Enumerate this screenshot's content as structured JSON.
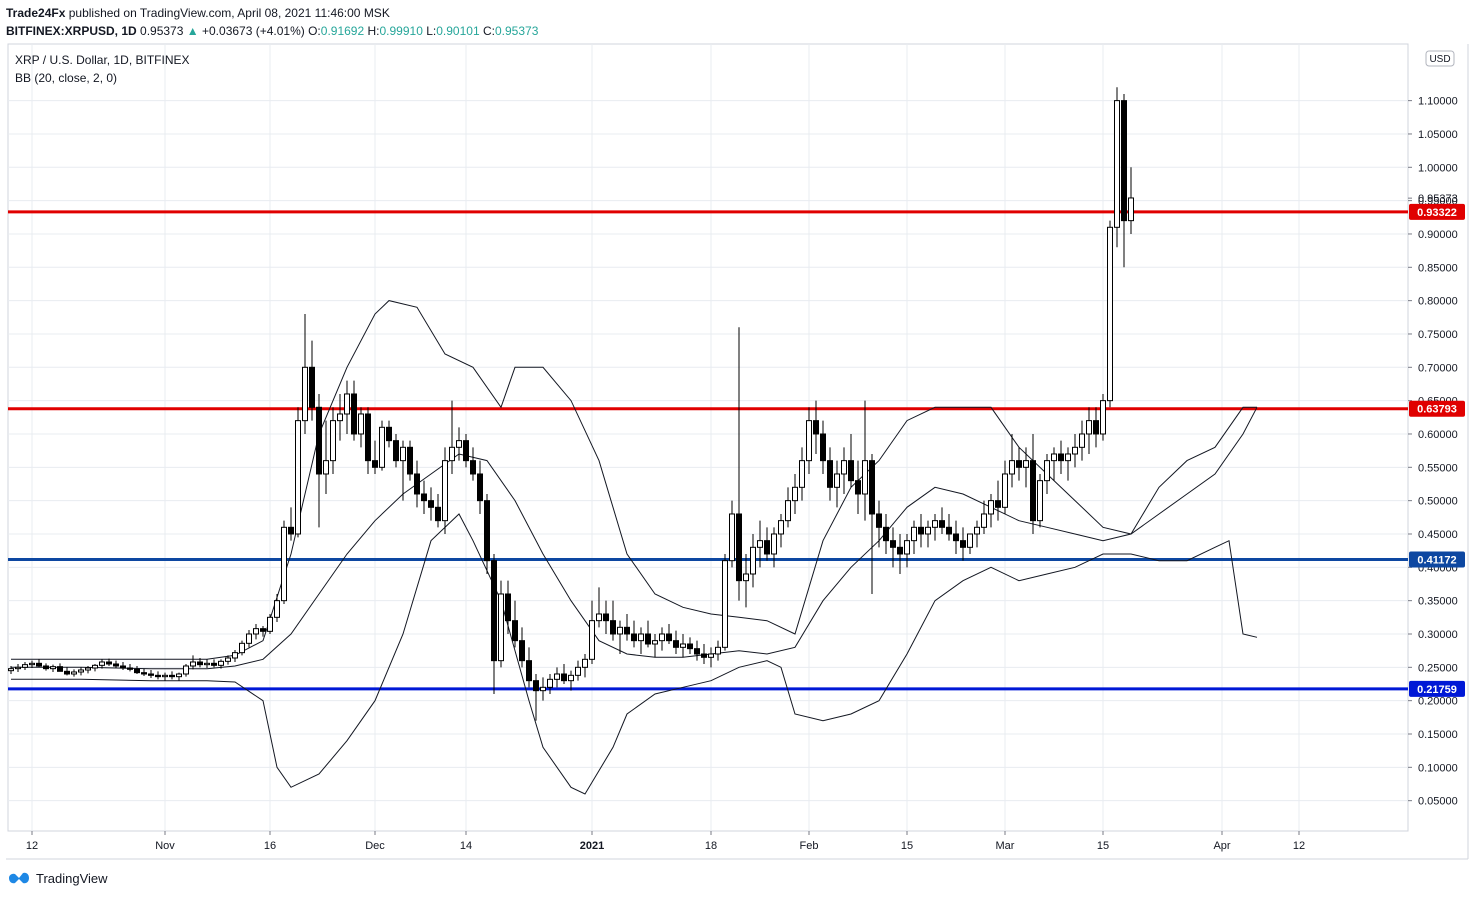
{
  "header": {
    "publisher": "Trade24Fx",
    "published_text": "published on TradingView.com, April 08, 2021 11:46:00 MSK",
    "symbol": "BITFINEX:XRPUSD, 1D",
    "last": "0.95373",
    "change": "+0.03673 (+4.01%)",
    "o_label": "O:",
    "o_value": "0.91692",
    "h_label": "H:",
    "h_value": "0.99910",
    "l_label": "L:",
    "l_value": "0.90101",
    "c_label": "C:",
    "c_value": "0.95373",
    "legend_title": "XRP / U.S. Dollar, 1D, BITFINEX",
    "legend_indicator": "BB (20, close, 2, 0)"
  },
  "currency_badge": "USD",
  "footer": {
    "brand": "TradingView"
  },
  "colors": {
    "resistance": "#e00000",
    "support_1": "#0d47a1",
    "support_2": "#0018d6",
    "candle": "#000000",
    "band": "#131722",
    "grid": "#e8ecf1"
  },
  "chart_data": {
    "type": "candlestick",
    "title": "XRP / U.S. Dollar, 1D, BITFINEX",
    "ylim": [
      0,
      1.15
    ],
    "y_ticks": [
      "0.05000",
      "0.10000",
      "0.15000",
      "0.20000",
      "0.25000",
      "0.30000",
      "0.35000",
      "0.40000",
      "0.45000",
      "0.50000",
      "0.55000",
      "0.60000",
      "0.65000",
      "0.70000",
      "0.75000",
      "0.80000",
      "0.85000",
      "0.90000",
      "0.95000",
      "1.00000",
      "1.05000",
      "1.10000"
    ],
    "x_ticks": [
      {
        "label": "12",
        "day": 3
      },
      {
        "label": "Nov",
        "day": 22
      },
      {
        "label": "16",
        "day": 37
      },
      {
        "label": "Dec",
        "day": 52
      },
      {
        "label": "14",
        "day": 65
      },
      {
        "label": "2021",
        "day": 83
      },
      {
        "label": "18",
        "day": 100
      },
      {
        "label": "Feb",
        "day": 114
      },
      {
        "label": "15",
        "day": 128
      },
      {
        "label": "Mar",
        "day": 142
      },
      {
        "label": "15",
        "day": 156
      },
      {
        "label": "Apr",
        "day": 173
      },
      {
        "label": "12",
        "day": 184
      }
    ],
    "horizontal_levels": [
      {
        "price": 0.93322,
        "label": "0.93322",
        "color": "#e00000"
      },
      {
        "price": 0.63793,
        "label": "0.63793",
        "color": "#e00000"
      },
      {
        "price": 0.41172,
        "label": "0.41172",
        "color": "#0d47a1"
      },
      {
        "price": 0.21759,
        "label": "0.21759",
        "color": "#0018d6"
      }
    ],
    "last_price_label": "0.95373",
    "candles": [
      [
        0.245,
        0.252,
        0.24,
        0.248
      ],
      [
        0.248,
        0.255,
        0.243,
        0.25
      ],
      [
        0.25,
        0.258,
        0.246,
        0.254
      ],
      [
        0.254,
        0.26,
        0.249,
        0.256
      ],
      [
        0.256,
        0.262,
        0.25,
        0.252
      ],
      [
        0.252,
        0.256,
        0.245,
        0.248
      ],
      [
        0.248,
        0.254,
        0.243,
        0.251
      ],
      [
        0.251,
        0.256,
        0.246,
        0.244
      ],
      [
        0.244,
        0.25,
        0.238,
        0.24
      ],
      [
        0.24,
        0.247,
        0.236,
        0.243
      ],
      [
        0.243,
        0.25,
        0.238,
        0.246
      ],
      [
        0.246,
        0.252,
        0.241,
        0.249
      ],
      [
        0.249,
        0.255,
        0.244,
        0.253
      ],
      [
        0.253,
        0.262,
        0.248,
        0.258
      ],
      [
        0.258,
        0.263,
        0.252,
        0.255
      ],
      [
        0.255,
        0.26,
        0.249,
        0.252
      ],
      [
        0.252,
        0.258,
        0.246,
        0.249
      ],
      [
        0.249,
        0.255,
        0.244,
        0.247
      ],
      [
        0.247,
        0.252,
        0.24,
        0.242
      ],
      [
        0.242,
        0.248,
        0.237,
        0.24
      ],
      [
        0.24,
        0.246,
        0.234,
        0.238
      ],
      [
        0.238,
        0.244,
        0.232,
        0.236
      ],
      [
        0.236,
        0.242,
        0.23,
        0.238
      ],
      [
        0.238,
        0.244,
        0.232,
        0.236
      ],
      [
        0.236,
        0.242,
        0.23,
        0.24
      ],
      [
        0.24,
        0.255,
        0.236,
        0.252
      ],
      [
        0.252,
        0.268,
        0.247,
        0.258
      ],
      [
        0.258,
        0.264,
        0.25,
        0.254
      ],
      [
        0.254,
        0.262,
        0.249,
        0.256
      ],
      [
        0.256,
        0.262,
        0.25,
        0.253
      ],
      [
        0.253,
        0.262,
        0.248,
        0.259
      ],
      [
        0.259,
        0.268,
        0.254,
        0.264
      ],
      [
        0.264,
        0.276,
        0.258,
        0.272
      ],
      [
        0.272,
        0.29,
        0.268,
        0.286
      ],
      [
        0.286,
        0.306,
        0.28,
        0.3
      ],
      [
        0.3,
        0.315,
        0.292,
        0.308
      ],
      [
        0.308,
        0.312,
        0.296,
        0.304
      ],
      [
        0.304,
        0.33,
        0.3,
        0.325
      ],
      [
        0.325,
        0.36,
        0.318,
        0.35
      ],
      [
        0.35,
        0.47,
        0.345,
        0.46
      ],
      [
        0.46,
        0.49,
        0.44,
        0.45
      ],
      [
        0.45,
        0.64,
        0.445,
        0.62
      ],
      [
        0.62,
        0.78,
        0.6,
        0.7
      ],
      [
        0.7,
        0.74,
        0.62,
        0.64
      ],
      [
        0.64,
        0.66,
        0.46,
        0.54
      ],
      [
        0.54,
        0.62,
        0.51,
        0.56
      ],
      [
        0.56,
        0.64,
        0.54,
        0.62
      ],
      [
        0.62,
        0.66,
        0.59,
        0.63
      ],
      [
        0.63,
        0.68,
        0.6,
        0.66
      ],
      [
        0.66,
        0.68,
        0.59,
        0.6
      ],
      [
        0.6,
        0.64,
        0.58,
        0.63
      ],
      [
        0.63,
        0.64,
        0.54,
        0.56
      ],
      [
        0.56,
        0.59,
        0.54,
        0.55
      ],
      [
        0.55,
        0.62,
        0.545,
        0.61
      ],
      [
        0.61,
        0.62,
        0.58,
        0.59
      ],
      [
        0.59,
        0.6,
        0.55,
        0.56
      ],
      [
        0.56,
        0.59,
        0.5,
        0.58
      ],
      [
        0.58,
        0.59,
        0.53,
        0.54
      ],
      [
        0.54,
        0.56,
        0.49,
        0.51
      ],
      [
        0.51,
        0.53,
        0.48,
        0.5
      ],
      [
        0.5,
        0.52,
        0.47,
        0.49
      ],
      [
        0.49,
        0.51,
        0.46,
        0.47
      ],
      [
        0.47,
        0.58,
        0.45,
        0.56
      ],
      [
        0.56,
        0.65,
        0.54,
        0.58
      ],
      [
        0.58,
        0.61,
        0.56,
        0.59
      ],
      [
        0.59,
        0.6,
        0.55,
        0.56
      ],
      [
        0.56,
        0.58,
        0.53,
        0.54
      ],
      [
        0.54,
        0.56,
        0.48,
        0.5
      ],
      [
        0.5,
        0.51,
        0.39,
        0.41
      ],
      [
        0.41,
        0.42,
        0.21,
        0.26
      ],
      [
        0.26,
        0.38,
        0.25,
        0.36
      ],
      [
        0.36,
        0.38,
        0.3,
        0.32
      ],
      [
        0.32,
        0.35,
        0.28,
        0.29
      ],
      [
        0.29,
        0.31,
        0.25,
        0.26
      ],
      [
        0.26,
        0.28,
        0.22,
        0.23
      ],
      [
        0.23,
        0.24,
        0.17,
        0.215
      ],
      [
        0.215,
        0.235,
        0.2,
        0.22
      ],
      [
        0.22,
        0.24,
        0.21,
        0.232
      ],
      [
        0.232,
        0.25,
        0.22,
        0.24
      ],
      [
        0.24,
        0.255,
        0.225,
        0.23
      ],
      [
        0.23,
        0.245,
        0.215,
        0.238
      ],
      [
        0.238,
        0.26,
        0.23,
        0.25
      ],
      [
        0.25,
        0.27,
        0.235,
        0.262
      ],
      [
        0.262,
        0.35,
        0.255,
        0.32
      ],
      [
        0.32,
        0.37,
        0.31,
        0.33
      ],
      [
        0.33,
        0.35,
        0.3,
        0.32
      ],
      [
        0.32,
        0.35,
        0.29,
        0.3
      ],
      [
        0.3,
        0.32,
        0.27,
        0.31
      ],
      [
        0.31,
        0.33,
        0.29,
        0.3
      ],
      [
        0.3,
        0.32,
        0.28,
        0.29
      ],
      [
        0.29,
        0.31,
        0.27,
        0.3
      ],
      [
        0.3,
        0.32,
        0.28,
        0.285
      ],
      [
        0.285,
        0.3,
        0.265,
        0.29
      ],
      [
        0.29,
        0.31,
        0.275,
        0.3
      ],
      [
        0.3,
        0.315,
        0.285,
        0.29
      ],
      [
        0.29,
        0.305,
        0.27,
        0.28
      ],
      [
        0.28,
        0.3,
        0.265,
        0.285
      ],
      [
        0.285,
        0.295,
        0.27,
        0.278
      ],
      [
        0.278,
        0.29,
        0.26,
        0.27
      ],
      [
        0.27,
        0.285,
        0.255,
        0.265
      ],
      [
        0.265,
        0.28,
        0.25,
        0.27
      ],
      [
        0.27,
        0.29,
        0.26,
        0.28
      ],
      [
        0.28,
        0.42,
        0.275,
        0.41
      ],
      [
        0.41,
        0.5,
        0.4,
        0.48
      ],
      [
        0.48,
        0.76,
        0.35,
        0.38
      ],
      [
        0.38,
        0.42,
        0.34,
        0.39
      ],
      [
        0.39,
        0.45,
        0.37,
        0.43
      ],
      [
        0.43,
        0.47,
        0.4,
        0.44
      ],
      [
        0.44,
        0.46,
        0.41,
        0.42
      ],
      [
        0.42,
        0.46,
        0.4,
        0.45
      ],
      [
        0.45,
        0.48,
        0.43,
        0.47
      ],
      [
        0.47,
        0.52,
        0.46,
        0.5
      ],
      [
        0.5,
        0.54,
        0.48,
        0.52
      ],
      [
        0.52,
        0.58,
        0.5,
        0.56
      ],
      [
        0.56,
        0.64,
        0.54,
        0.62
      ],
      [
        0.62,
        0.65,
        0.57,
        0.6
      ],
      [
        0.6,
        0.62,
        0.54,
        0.56
      ],
      [
        0.56,
        0.58,
        0.5,
        0.52
      ],
      [
        0.52,
        0.56,
        0.49,
        0.54
      ],
      [
        0.54,
        0.58,
        0.51,
        0.56
      ],
      [
        0.56,
        0.6,
        0.52,
        0.53
      ],
      [
        0.53,
        0.56,
        0.48,
        0.51
      ],
      [
        0.51,
        0.65,
        0.47,
        0.56
      ],
      [
        0.56,
        0.57,
        0.36,
        0.48
      ],
      [
        0.48,
        0.5,
        0.43,
        0.46
      ],
      [
        0.46,
        0.48,
        0.42,
        0.44
      ],
      [
        0.44,
        0.46,
        0.4,
        0.43
      ],
      [
        0.43,
        0.45,
        0.39,
        0.42
      ],
      [
        0.42,
        0.45,
        0.4,
        0.44
      ],
      [
        0.44,
        0.47,
        0.42,
        0.46
      ],
      [
        0.46,
        0.48,
        0.43,
        0.45
      ],
      [
        0.45,
        0.47,
        0.43,
        0.46
      ],
      [
        0.46,
        0.48,
        0.44,
        0.47
      ],
      [
        0.47,
        0.49,
        0.45,
        0.46
      ],
      [
        0.46,
        0.48,
        0.44,
        0.45
      ],
      [
        0.45,
        0.47,
        0.42,
        0.44
      ],
      [
        0.44,
        0.46,
        0.41,
        0.43
      ],
      [
        0.43,
        0.45,
        0.42,
        0.45
      ],
      [
        0.45,
        0.47,
        0.43,
        0.46
      ],
      [
        0.46,
        0.5,
        0.45,
        0.48
      ],
      [
        0.48,
        0.51,
        0.46,
        0.5
      ],
      [
        0.5,
        0.53,
        0.47,
        0.49
      ],
      [
        0.49,
        0.56,
        0.48,
        0.54
      ],
      [
        0.54,
        0.6,
        0.52,
        0.56
      ],
      [
        0.56,
        0.58,
        0.53,
        0.55
      ],
      [
        0.55,
        0.58,
        0.52,
        0.56
      ],
      [
        0.56,
        0.6,
        0.45,
        0.47
      ],
      [
        0.47,
        0.54,
        0.46,
        0.53
      ],
      [
        0.53,
        0.57,
        0.51,
        0.56
      ],
      [
        0.56,
        0.58,
        0.53,
        0.57
      ],
      [
        0.57,
        0.59,
        0.54,
        0.56
      ],
      [
        0.56,
        0.58,
        0.53,
        0.57
      ],
      [
        0.57,
        0.6,
        0.55,
        0.58
      ],
      [
        0.58,
        0.62,
        0.56,
        0.6
      ],
      [
        0.6,
        0.64,
        0.57,
        0.62
      ],
      [
        0.62,
        0.64,
        0.58,
        0.6
      ],
      [
        0.6,
        0.66,
        0.59,
        0.65
      ],
      [
        0.65,
        0.92,
        0.64,
        0.91
      ],
      [
        0.91,
        1.12,
        0.88,
        1.1
      ],
      [
        1.1,
        1.11,
        0.85,
        0.92
      ],
      [
        0.92,
        1.0,
        0.9,
        0.954
      ]
    ],
    "bollinger_upper": [
      [
        0,
        0.262
      ],
      [
        10,
        0.262
      ],
      [
        20,
        0.262
      ],
      [
        28,
        0.262
      ],
      [
        32,
        0.268
      ],
      [
        36,
        0.29
      ],
      [
        40,
        0.42
      ],
      [
        44,
        0.6
      ],
      [
        48,
        0.7
      ],
      [
        52,
        0.78
      ],
      [
        54,
        0.8
      ],
      [
        58,
        0.79
      ],
      [
        62,
        0.72
      ],
      [
        66,
        0.7
      ],
      [
        70,
        0.64
      ],
      [
        72,
        0.7
      ],
      [
        76,
        0.7
      ],
      [
        80,
        0.65
      ],
      [
        84,
        0.56
      ],
      [
        88,
        0.42
      ],
      [
        92,
        0.36
      ],
      [
        96,
        0.34
      ],
      [
        100,
        0.33
      ],
      [
        104,
        0.325
      ],
      [
        108,
        0.32
      ],
      [
        112,
        0.3
      ],
      [
        116,
        0.44
      ],
      [
        120,
        0.52
      ],
      [
        124,
        0.56
      ],
      [
        128,
        0.62
      ],
      [
        132,
        0.64
      ],
      [
        136,
        0.64
      ],
      [
        140,
        0.64
      ],
      [
        144,
        0.58
      ],
      [
        148,
        0.54
      ],
      [
        152,
        0.5
      ],
      [
        156,
        0.46
      ],
      [
        160,
        0.45
      ],
      [
        164,
        0.52
      ],
      [
        168,
        0.56
      ],
      [
        172,
        0.58
      ],
      [
        176,
        0.64
      ],
      [
        178,
        0.64
      ]
    ],
    "bollinger_middle": [
      [
        0,
        0.25
      ],
      [
        10,
        0.25
      ],
      [
        20,
        0.248
      ],
      [
        28,
        0.248
      ],
      [
        32,
        0.252
      ],
      [
        36,
        0.262
      ],
      [
        40,
        0.3
      ],
      [
        44,
        0.36
      ],
      [
        48,
        0.42
      ],
      [
        52,
        0.47
      ],
      [
        56,
        0.51
      ],
      [
        60,
        0.54
      ],
      [
        64,
        0.57
      ],
      [
        68,
        0.56
      ],
      [
        72,
        0.5
      ],
      [
        76,
        0.42
      ],
      [
        80,
        0.35
      ],
      [
        84,
        0.29
      ],
      [
        88,
        0.27
      ],
      [
        92,
        0.265
      ],
      [
        96,
        0.265
      ],
      [
        100,
        0.27
      ],
      [
        104,
        0.275
      ],
      [
        108,
        0.27
      ],
      [
        112,
        0.28
      ],
      [
        116,
        0.35
      ],
      [
        120,
        0.4
      ],
      [
        124,
        0.44
      ],
      [
        128,
        0.49
      ],
      [
        132,
        0.52
      ],
      [
        136,
        0.51
      ],
      [
        140,
        0.49
      ],
      [
        144,
        0.47
      ],
      [
        148,
        0.46
      ],
      [
        152,
        0.45
      ],
      [
        156,
        0.44
      ],
      [
        160,
        0.45
      ],
      [
        164,
        0.48
      ],
      [
        168,
        0.51
      ],
      [
        172,
        0.54
      ],
      [
        176,
        0.6
      ],
      [
        178,
        0.64
      ]
    ],
    "bollinger_lower": [
      [
        0,
        0.232
      ],
      [
        10,
        0.232
      ],
      [
        20,
        0.23
      ],
      [
        28,
        0.23
      ],
      [
        32,
        0.228
      ],
      [
        36,
        0.2
      ],
      [
        38,
        0.1
      ],
      [
        40,
        0.07
      ],
      [
        44,
        0.09
      ],
      [
        48,
        0.14
      ],
      [
        52,
        0.2
      ],
      [
        56,
        0.3
      ],
      [
        60,
        0.44
      ],
      [
        64,
        0.48
      ],
      [
        66,
        0.44
      ],
      [
        70,
        0.35
      ],
      [
        74,
        0.2
      ],
      [
        76,
        0.13
      ],
      [
        80,
        0.07
      ],
      [
        82,
        0.06
      ],
      [
        86,
        0.13
      ],
      [
        88,
        0.18
      ],
      [
        92,
        0.21
      ],
      [
        96,
        0.22
      ],
      [
        100,
        0.23
      ],
      [
        104,
        0.25
      ],
      [
        108,
        0.26
      ],
      [
        110,
        0.25
      ],
      [
        112,
        0.18
      ],
      [
        116,
        0.17
      ],
      [
        120,
        0.18
      ],
      [
        124,
        0.2
      ],
      [
        128,
        0.27
      ],
      [
        132,
        0.35
      ],
      [
        136,
        0.38
      ],
      [
        140,
        0.4
      ],
      [
        144,
        0.38
      ],
      [
        148,
        0.39
      ],
      [
        152,
        0.4
      ],
      [
        156,
        0.42
      ],
      [
        160,
        0.42
      ],
      [
        164,
        0.41
      ],
      [
        168,
        0.41
      ],
      [
        172,
        0.43
      ],
      [
        174,
        0.44
      ],
      [
        176,
        0.3
      ],
      [
        178,
        0.295
      ]
    ]
  }
}
